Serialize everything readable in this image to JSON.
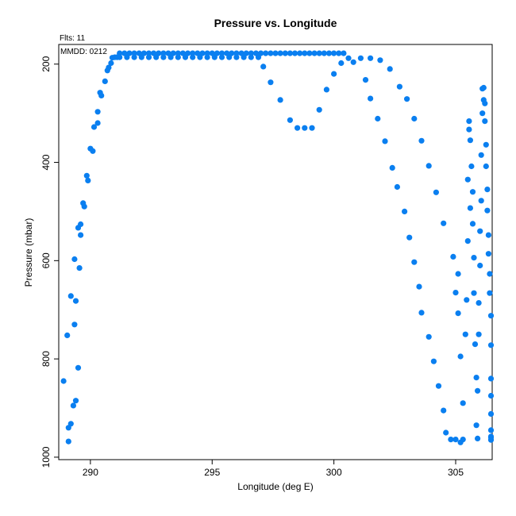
{
  "chart_data": {
    "type": "scatter",
    "title": "Pressure vs. Longitude",
    "xlabel": "Longitude (deg E)",
    "ylabel": "Pressure (mbar)",
    "annotations": [
      "Flts: 11",
      "MMDD: 0212"
    ],
    "xlim": [
      288.7,
      306.5
    ],
    "ylim": [
      1005,
      160
    ],
    "y_reversed": true,
    "x_ticks": [
      290,
      295,
      300,
      305
    ],
    "y_ticks": [
      200,
      400,
      600,
      800,
      1000
    ],
    "grid": false,
    "legend": "none",
    "point_color": "#0a7ff0",
    "series": [
      {
        "points": [
          [
            288.9,
            845
          ],
          [
            289.1,
            940
          ],
          [
            289.1,
            968
          ],
          [
            289.2,
            932
          ],
          [
            289.3,
            895
          ],
          [
            289.4,
            885
          ],
          [
            289.05,
            752
          ],
          [
            289.2,
            672
          ],
          [
            289.35,
            730
          ],
          [
            289.4,
            682
          ],
          [
            289.5,
            818
          ],
          [
            289.35,
            597
          ],
          [
            289.55,
            615
          ],
          [
            289.6,
            548
          ],
          [
            289.5,
            533
          ],
          [
            289.6,
            526
          ],
          [
            289.7,
            483
          ],
          [
            289.75,
            490
          ],
          [
            289.85,
            427
          ],
          [
            289.9,
            437
          ],
          [
            290.0,
            372
          ],
          [
            290.1,
            377
          ],
          [
            290.15,
            328
          ],
          [
            290.3,
            320
          ],
          [
            290.3,
            297
          ],
          [
            290.4,
            258
          ],
          [
            290.45,
            264
          ],
          [
            290.6,
            235
          ],
          [
            290.7,
            213
          ],
          [
            290.75,
            207
          ],
          [
            290.85,
            198
          ],
          [
            290.9,
            187
          ],
          [
            291.0,
            186
          ],
          [
            291.1,
            186
          ],
          [
            291.2,
            178
          ],
          [
            291.2,
            186
          ],
          [
            291.5,
            186
          ],
          [
            291.8,
            186
          ],
          [
            292.1,
            186
          ],
          [
            292.4,
            186
          ],
          [
            292.7,
            186
          ],
          [
            293.0,
            186
          ],
          [
            293.3,
            186
          ],
          [
            293.6,
            186
          ],
          [
            293.9,
            186
          ],
          [
            294.2,
            186
          ],
          [
            294.5,
            186
          ],
          [
            294.8,
            186
          ],
          [
            295.1,
            186
          ],
          [
            295.4,
            186
          ],
          [
            295.7,
            186
          ],
          [
            296.0,
            186
          ],
          [
            296.3,
            186
          ],
          [
            296.6,
            186
          ],
          [
            291.4,
            178
          ],
          [
            291.6,
            178
          ],
          [
            291.8,
            178
          ],
          [
            292.0,
            178
          ],
          [
            292.2,
            178
          ],
          [
            292.4,
            178
          ],
          [
            292.6,
            178
          ],
          [
            292.8,
            178
          ],
          [
            293.0,
            178
          ],
          [
            293.2,
            178
          ],
          [
            293.4,
            178
          ],
          [
            293.6,
            178
          ],
          [
            293.8,
            178
          ],
          [
            294.0,
            178
          ],
          [
            294.2,
            178
          ],
          [
            294.4,
            178
          ],
          [
            294.6,
            178
          ],
          [
            294.8,
            178
          ],
          [
            295.0,
            178
          ],
          [
            295.2,
            178
          ],
          [
            295.4,
            178
          ],
          [
            295.6,
            178
          ],
          [
            295.8,
            178
          ],
          [
            296.0,
            178
          ],
          [
            296.2,
            178
          ],
          [
            296.4,
            178
          ],
          [
            296.6,
            178
          ],
          [
            296.8,
            178
          ],
          [
            297.0,
            178
          ],
          [
            297.2,
            178
          ],
          [
            297.4,
            178
          ],
          [
            297.6,
            178
          ],
          [
            297.8,
            178
          ],
          [
            298.0,
            178
          ],
          [
            298.2,
            178
          ],
          [
            298.4,
            178
          ],
          [
            298.6,
            178
          ],
          [
            298.8,
            178
          ],
          [
            299.0,
            178
          ],
          [
            299.2,
            178
          ],
          [
            299.4,
            178
          ],
          [
            299.6,
            178
          ],
          [
            299.8,
            178
          ],
          [
            300.0,
            178
          ],
          [
            300.2,
            178
          ],
          [
            300.4,
            178
          ],
          [
            296.9,
            186
          ],
          [
            297.1,
            205
          ],
          [
            297.4,
            237
          ],
          [
            297.8,
            273
          ],
          [
            298.2,
            314
          ],
          [
            298.5,
            330
          ],
          [
            298.8,
            330
          ],
          [
            299.1,
            330
          ],
          [
            299.4,
            293
          ],
          [
            299.7,
            252
          ],
          [
            300.0,
            220
          ],
          [
            300.3,
            198
          ],
          [
            300.6,
            188
          ],
          [
            300.8,
            196
          ],
          [
            301.1,
            188
          ],
          [
            301.5,
            188
          ],
          [
            301.9,
            192
          ],
          [
            302.3,
            210
          ],
          [
            302.7,
            246
          ],
          [
            303.0,
            271
          ],
          [
            303.3,
            311
          ],
          [
            303.6,
            356
          ],
          [
            303.9,
            407
          ],
          [
            304.2,
            461
          ],
          [
            304.5,
            524
          ],
          [
            301.3,
            232
          ],
          [
            301.5,
            270
          ],
          [
            301.8,
            311
          ],
          [
            302.1,
            357
          ],
          [
            302.4,
            411
          ],
          [
            302.6,
            450
          ],
          [
            302.9,
            500
          ],
          [
            303.1,
            553
          ],
          [
            303.3,
            603
          ],
          [
            303.5,
            653
          ],
          [
            303.6,
            706
          ],
          [
            303.9,
            755
          ],
          [
            304.1,
            805
          ],
          [
            304.3,
            855
          ],
          [
            304.5,
            905
          ],
          [
            304.6,
            950
          ],
          [
            304.8,
            964
          ],
          [
            305.0,
            964
          ],
          [
            305.2,
            970
          ],
          [
            305.3,
            964
          ],
          [
            304.9,
            592
          ],
          [
            305.0,
            665
          ],
          [
            305.1,
            627
          ],
          [
            305.1,
            707
          ],
          [
            305.2,
            795
          ],
          [
            305.3,
            890
          ],
          [
            305.4,
            750
          ],
          [
            305.45,
            680
          ],
          [
            305.5,
            560
          ],
          [
            305.5,
            435
          ],
          [
            305.55,
            316
          ],
          [
            305.55,
            333
          ],
          [
            305.6,
            355
          ],
          [
            305.6,
            493
          ],
          [
            305.65,
            408
          ],
          [
            305.7,
            525
          ],
          [
            305.7,
            460
          ],
          [
            305.75,
            594
          ],
          [
            305.75,
            666
          ],
          [
            305.8,
            770
          ],
          [
            305.85,
            838
          ],
          [
            305.85,
            935
          ],
          [
            305.9,
            962
          ],
          [
            305.9,
            865
          ],
          [
            305.95,
            750
          ],
          [
            305.95,
            686
          ],
          [
            306.0,
            610
          ],
          [
            306.0,
            540
          ],
          [
            306.05,
            478
          ],
          [
            306.05,
            385
          ],
          [
            306.1,
            300
          ],
          [
            306.1,
            250
          ],
          [
            306.15,
            248
          ],
          [
            306.15,
            273
          ],
          [
            306.2,
            280
          ],
          [
            306.2,
            316
          ],
          [
            306.25,
            364
          ],
          [
            306.25,
            408
          ],
          [
            306.3,
            455
          ],
          [
            306.3,
            498
          ],
          [
            306.35,
            548
          ],
          [
            306.35,
            586
          ],
          [
            306.4,
            627
          ],
          [
            306.4,
            666
          ],
          [
            306.45,
            712
          ],
          [
            306.45,
            772
          ],
          [
            306.45,
            840
          ],
          [
            306.45,
            875
          ],
          [
            306.45,
            912
          ],
          [
            306.45,
            945
          ],
          [
            306.45,
            958
          ],
          [
            306.45,
            960
          ],
          [
            306.45,
            965
          ]
        ]
      }
    ]
  }
}
